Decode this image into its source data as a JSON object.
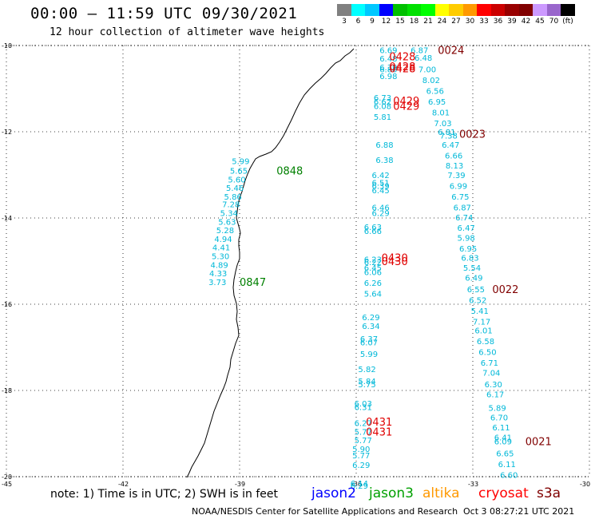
{
  "header": {
    "title": "00:00 — 11:59 UTC 09/30/2021",
    "subtitle": "12 hour collection of altimeter wave heights"
  },
  "colorbar": {
    "colors": [
      "#808080",
      "#00ffff",
      "#00c8ff",
      "#0000ff",
      "#00c000",
      "#00e000",
      "#00ff00",
      "#ffff00",
      "#ffcc00",
      "#ff9900",
      "#ff0000",
      "#cc0000",
      "#990000",
      "#800000",
      "#cc99ff",
      "#9966cc",
      "#000000"
    ],
    "labels": [
      "3",
      "6",
      "9",
      "12",
      "15",
      "18",
      "21",
      "24",
      "27",
      "30",
      "33",
      "36",
      "39",
      "42",
      "45",
      "70",
      "(ft)"
    ]
  },
  "axes": {
    "lat_labels": [
      "-10",
      "-12",
      "-14",
      "-16",
      "-18",
      "-20"
    ],
    "lon_labels": [
      "-45",
      "-42",
      "-39",
      "-36",
      "-33",
      "-30"
    ]
  },
  "map": {
    "tracks": [
      {
        "satellite": "jason3",
        "label_color": "#008000",
        "points": [
          {
            "lat": -12.68,
            "lon": -39.2,
            "swh": 5.99
          },
          {
            "lat": -12.9,
            "lon": -39.25,
            "swh": 5.65
          },
          {
            "lat": -13.1,
            "lon": -39.3,
            "swh": 5.6
          },
          {
            "lat": -13.3,
            "lon": -39.35,
            "swh": 5.46
          },
          {
            "lat": -13.5,
            "lon": -39.4,
            "swh": 5.86
          },
          {
            "lat": -13.68,
            "lon": -39.45,
            "swh": 7.28
          },
          {
            "lat": -13.88,
            "lon": -39.5,
            "swh": 5.34
          },
          {
            "lat": -14.08,
            "lon": -39.55,
            "swh": 5.63
          },
          {
            "lat": -14.28,
            "lon": -39.6,
            "swh": 5.28
          },
          {
            "lat": -14.48,
            "lon": -39.65,
            "swh": 4.94
          },
          {
            "lat": -14.68,
            "lon": -39.7,
            "swh": 4.41
          },
          {
            "lat": -14.88,
            "lon": -39.72,
            "swh": 5.3
          },
          {
            "lat": -15.08,
            "lon": -39.75,
            "swh": 4.89
          },
          {
            "lat": -15.28,
            "lon": -39.78,
            "swh": 4.33
          },
          {
            "lat": -15.48,
            "lon": -39.8,
            "swh": 3.73
          }
        ],
        "times": [
          {
            "text": "0848",
            "lat": -12.9,
            "lon": -38.05
          },
          {
            "text": "0847",
            "lat": -15.48,
            "lon": -39.0
          }
        ]
      },
      {
        "satellite": "jason2",
        "label_color": "#00b0d0",
        "points": [
          {
            "lat": -10.1,
            "lon": -35.4,
            "swh": 6.69
          },
          {
            "lat": -10.3,
            "lon": -35.4,
            "swh": 6.48
          },
          {
            "lat": -10.5,
            "lon": -35.4,
            "swh": 6.39
          },
          {
            "lat": -10.55,
            "lon": -35.4,
            "swh": 6.8
          },
          {
            "lat": -10.7,
            "lon": -35.4,
            "swh": 6.98
          },
          {
            "lat": -11.2,
            "lon": -35.55,
            "swh": 6.73
          },
          {
            "lat": -11.3,
            "lon": -35.55,
            "swh": 6.62
          },
          {
            "lat": -11.4,
            "lon": -35.55,
            "swh": 6.08
          },
          {
            "lat": -11.65,
            "lon": -35.55,
            "swh": 5.81
          },
          {
            "lat": -12.3,
            "lon": -35.5,
            "swh": 6.88
          },
          {
            "lat": -12.65,
            "lon": -35.5,
            "swh": 6.38
          },
          {
            "lat": -13.0,
            "lon": -35.6,
            "swh": 6.42
          },
          {
            "lat": -13.18,
            "lon": -35.6,
            "swh": 6.51
          },
          {
            "lat": -13.25,
            "lon": -35.6,
            "swh": 6.39
          },
          {
            "lat": -13.35,
            "lon": -35.6,
            "swh": 6.45
          },
          {
            "lat": -13.75,
            "lon": -35.6,
            "swh": 6.46
          },
          {
            "lat": -13.88,
            "lon": -35.6,
            "swh": 6.29
          },
          {
            "lat": -14.2,
            "lon": -35.8,
            "swh": 6.63
          },
          {
            "lat": -14.3,
            "lon": -35.8,
            "swh": 6.66
          },
          {
            "lat": -14.95,
            "lon": -35.8,
            "swh": 6.23
          },
          {
            "lat": -15.02,
            "lon": -35.8,
            "swh": 6.22
          },
          {
            "lat": -15.15,
            "lon": -35.8,
            "swh": 6.45
          },
          {
            "lat": -15.25,
            "lon": -35.8,
            "swh": 6.06
          },
          {
            "lat": -15.5,
            "lon": -35.8,
            "swh": 6.26
          },
          {
            "lat": -15.75,
            "lon": -35.8,
            "swh": 5.64
          },
          {
            "lat": -16.3,
            "lon": -35.85,
            "swh": 6.29
          },
          {
            "lat": -16.5,
            "lon": -35.85,
            "swh": 6.34
          },
          {
            "lat": -16.8,
            "lon": -35.9,
            "swh": 6.37
          },
          {
            "lat": -16.88,
            "lon": -35.9,
            "swh": 6.07
          },
          {
            "lat": -17.15,
            "lon": -35.9,
            "swh": 5.99
          },
          {
            "lat": -17.5,
            "lon": -35.95,
            "swh": 5.82
          },
          {
            "lat": -17.78,
            "lon": -35.95,
            "swh": 5.84
          },
          {
            "lat": -17.85,
            "lon": -35.95,
            "swh": 5.75
          },
          {
            "lat": -18.3,
            "lon": -36.05,
            "swh": 6.03
          },
          {
            "lat": -18.38,
            "lon": -36.05,
            "swh": 6.31
          },
          {
            "lat": -18.75,
            "lon": -36.05,
            "swh": 6.27
          },
          {
            "lat": -18.95,
            "lon": -36.05,
            "swh": 5.77
          },
          {
            "lat": -19.15,
            "lon": -36.05,
            "swh": 5.77
          },
          {
            "lat": -19.35,
            "lon": -36.1,
            "swh": 5.9
          },
          {
            "lat": -19.5,
            "lon": -36.1,
            "swh": 5.77
          },
          {
            "lat": -19.72,
            "lon": -36.1,
            "swh": 6.29
          },
          {
            "lat": -20.15,
            "lon": -36.15,
            "swh": 6.14
          },
          {
            "lat": -20.2,
            "lon": -36.15,
            "swh": 6.29
          }
        ],
        "times": []
      },
      {
        "satellite": "sentinel-a",
        "label_color": "#00b0d0",
        "points": [
          {
            "lat": -10.1,
            "lon": -34.6,
            "swh": 6.87
          },
          {
            "lat": -10.28,
            "lon": -34.5,
            "swh": 6.48
          },
          {
            "lat": -10.55,
            "lon": -34.4,
            "swh": 7.0
          },
          {
            "lat": -10.8,
            "lon": -34.3,
            "swh": 8.02
          },
          {
            "lat": -11.05,
            "lon": -34.2,
            "swh": 6.56
          },
          {
            "lat": -11.3,
            "lon": -34.15,
            "swh": 6.95
          },
          {
            "lat": -11.55,
            "lon": -34.05,
            "swh": 8.01
          },
          {
            "lat": -11.8,
            "lon": -34.0,
            "swh": 7.03
          },
          {
            "lat": -12.0,
            "lon": -33.9,
            "swh": 6.81
          },
          {
            "lat": -12.08,
            "lon": -33.85,
            "swh": 7.38
          },
          {
            "lat": -12.3,
            "lon": -33.8,
            "swh": 6.47
          },
          {
            "lat": -12.55,
            "lon": -33.72,
            "swh": 6.66
          },
          {
            "lat": -12.78,
            "lon": -33.7,
            "swh": 8.13
          },
          {
            "lat": -13.0,
            "lon": -33.65,
            "swh": 7.39
          },
          {
            "lat": -13.25,
            "lon": -33.6,
            "swh": 6.99
          },
          {
            "lat": -13.5,
            "lon": -33.55,
            "swh": 6.75
          },
          {
            "lat": -13.75,
            "lon": -33.5,
            "swh": 6.87
          },
          {
            "lat": -13.98,
            "lon": -33.45,
            "swh": 6.74
          },
          {
            "lat": -14.22,
            "lon": -33.4,
            "swh": 6.47
          },
          {
            "lat": -14.45,
            "lon": -33.4,
            "swh": 5.98
          },
          {
            "lat": -14.7,
            "lon": -33.35,
            "swh": 6.95
          },
          {
            "lat": -14.92,
            "lon": -33.3,
            "swh": 6.83
          },
          {
            "lat": -15.15,
            "lon": -33.25,
            "swh": 5.54
          },
          {
            "lat": -15.38,
            "lon": -33.2,
            "swh": 6.49
          },
          {
            "lat": -15.65,
            "lon": -33.15,
            "swh": 6.55
          },
          {
            "lat": -15.9,
            "lon": -33.1,
            "swh": 6.52
          },
          {
            "lat": -16.15,
            "lon": -33.05,
            "swh": 5.41
          },
          {
            "lat": -16.4,
            "lon": -33.0,
            "swh": 7.17
          },
          {
            "lat": -16.6,
            "lon": -32.95,
            "swh": 6.01
          },
          {
            "lat": -16.85,
            "lon": -32.9,
            "swh": 6.58
          },
          {
            "lat": -17.1,
            "lon": -32.85,
            "swh": 6.5
          },
          {
            "lat": -17.35,
            "lon": -32.8,
            "swh": 6.71
          },
          {
            "lat": -17.58,
            "lon": -32.75,
            "swh": 7.04
          },
          {
            "lat": -17.85,
            "lon": -32.7,
            "swh": 6.3
          },
          {
            "lat": -18.08,
            "lon": -32.65,
            "swh": 6.17
          },
          {
            "lat": -18.4,
            "lon": -32.6,
            "swh": 5.89
          },
          {
            "lat": -18.62,
            "lon": -32.55,
            "swh": 6.7
          },
          {
            "lat": -18.85,
            "lon": -32.5,
            "swh": 6.11
          },
          {
            "lat": -19.08,
            "lon": -32.45,
            "swh": 6.41
          },
          {
            "lat": -19.18,
            "lon": -32.45,
            "swh": 6.09
          },
          {
            "lat": -19.45,
            "lon": -32.4,
            "swh": 6.65
          },
          {
            "lat": -19.7,
            "lon": -32.35,
            "swh": 6.11
          },
          {
            "lat": -19.95,
            "lon": -32.3,
            "swh": 6.6
          }
        ],
        "times": [
          {
            "text": "0024",
            "lat": -10.1,
            "lon": -33.9
          },
          {
            "text": "0023",
            "lat": -12.05,
            "lon": -33.35
          },
          {
            "text": "0022",
            "lat": -15.65,
            "lon": -32.5
          },
          {
            "text": "0021",
            "lat": -19.18,
            "lon": -31.65
          }
        ]
      },
      {
        "satellite": "cryosat",
        "label_color": "#e00000",
        "points": [],
        "times": [
          {
            "text": "0428",
            "lat": -10.25,
            "lon": -35.15
          },
          {
            "text": "0428",
            "lat": -10.48,
            "lon": -35.15
          },
          {
            "text": "0428",
            "lat": -10.53,
            "lon": -35.15
          },
          {
            "text": "0429",
            "lat": -11.28,
            "lon": -35.05
          },
          {
            "text": "0429",
            "lat": -11.4,
            "lon": -35.05
          },
          {
            "text": "0430",
            "lat": -14.92,
            "lon": -35.35
          },
          {
            "text": "0430",
            "lat": -15.0,
            "lon": -35.35
          },
          {
            "text": "0431",
            "lat": -18.72,
            "lon": -35.75
          },
          {
            "text": "0431",
            "lat": -18.95,
            "lon": -35.75
          }
        ]
      }
    ]
  },
  "footer": {
    "note": "note: 1) Time is in UTC; 2) SWH is in feet",
    "satellites": [
      {
        "name": "jason2",
        "color": "#0000ff"
      },
      {
        "name": "jason3",
        "color": "#00a000"
      },
      {
        "name": "altika",
        "color": "#ff9900"
      },
      {
        "name": "cryosat",
        "color": "#ff0000"
      },
      {
        "name": "s3a",
        "color": "#800000"
      }
    ],
    "credit": "NOAA/NESDIS Center for Satellite Applications and Research",
    "generated": "Oct  3 08:27:21 UTC 2021"
  }
}
